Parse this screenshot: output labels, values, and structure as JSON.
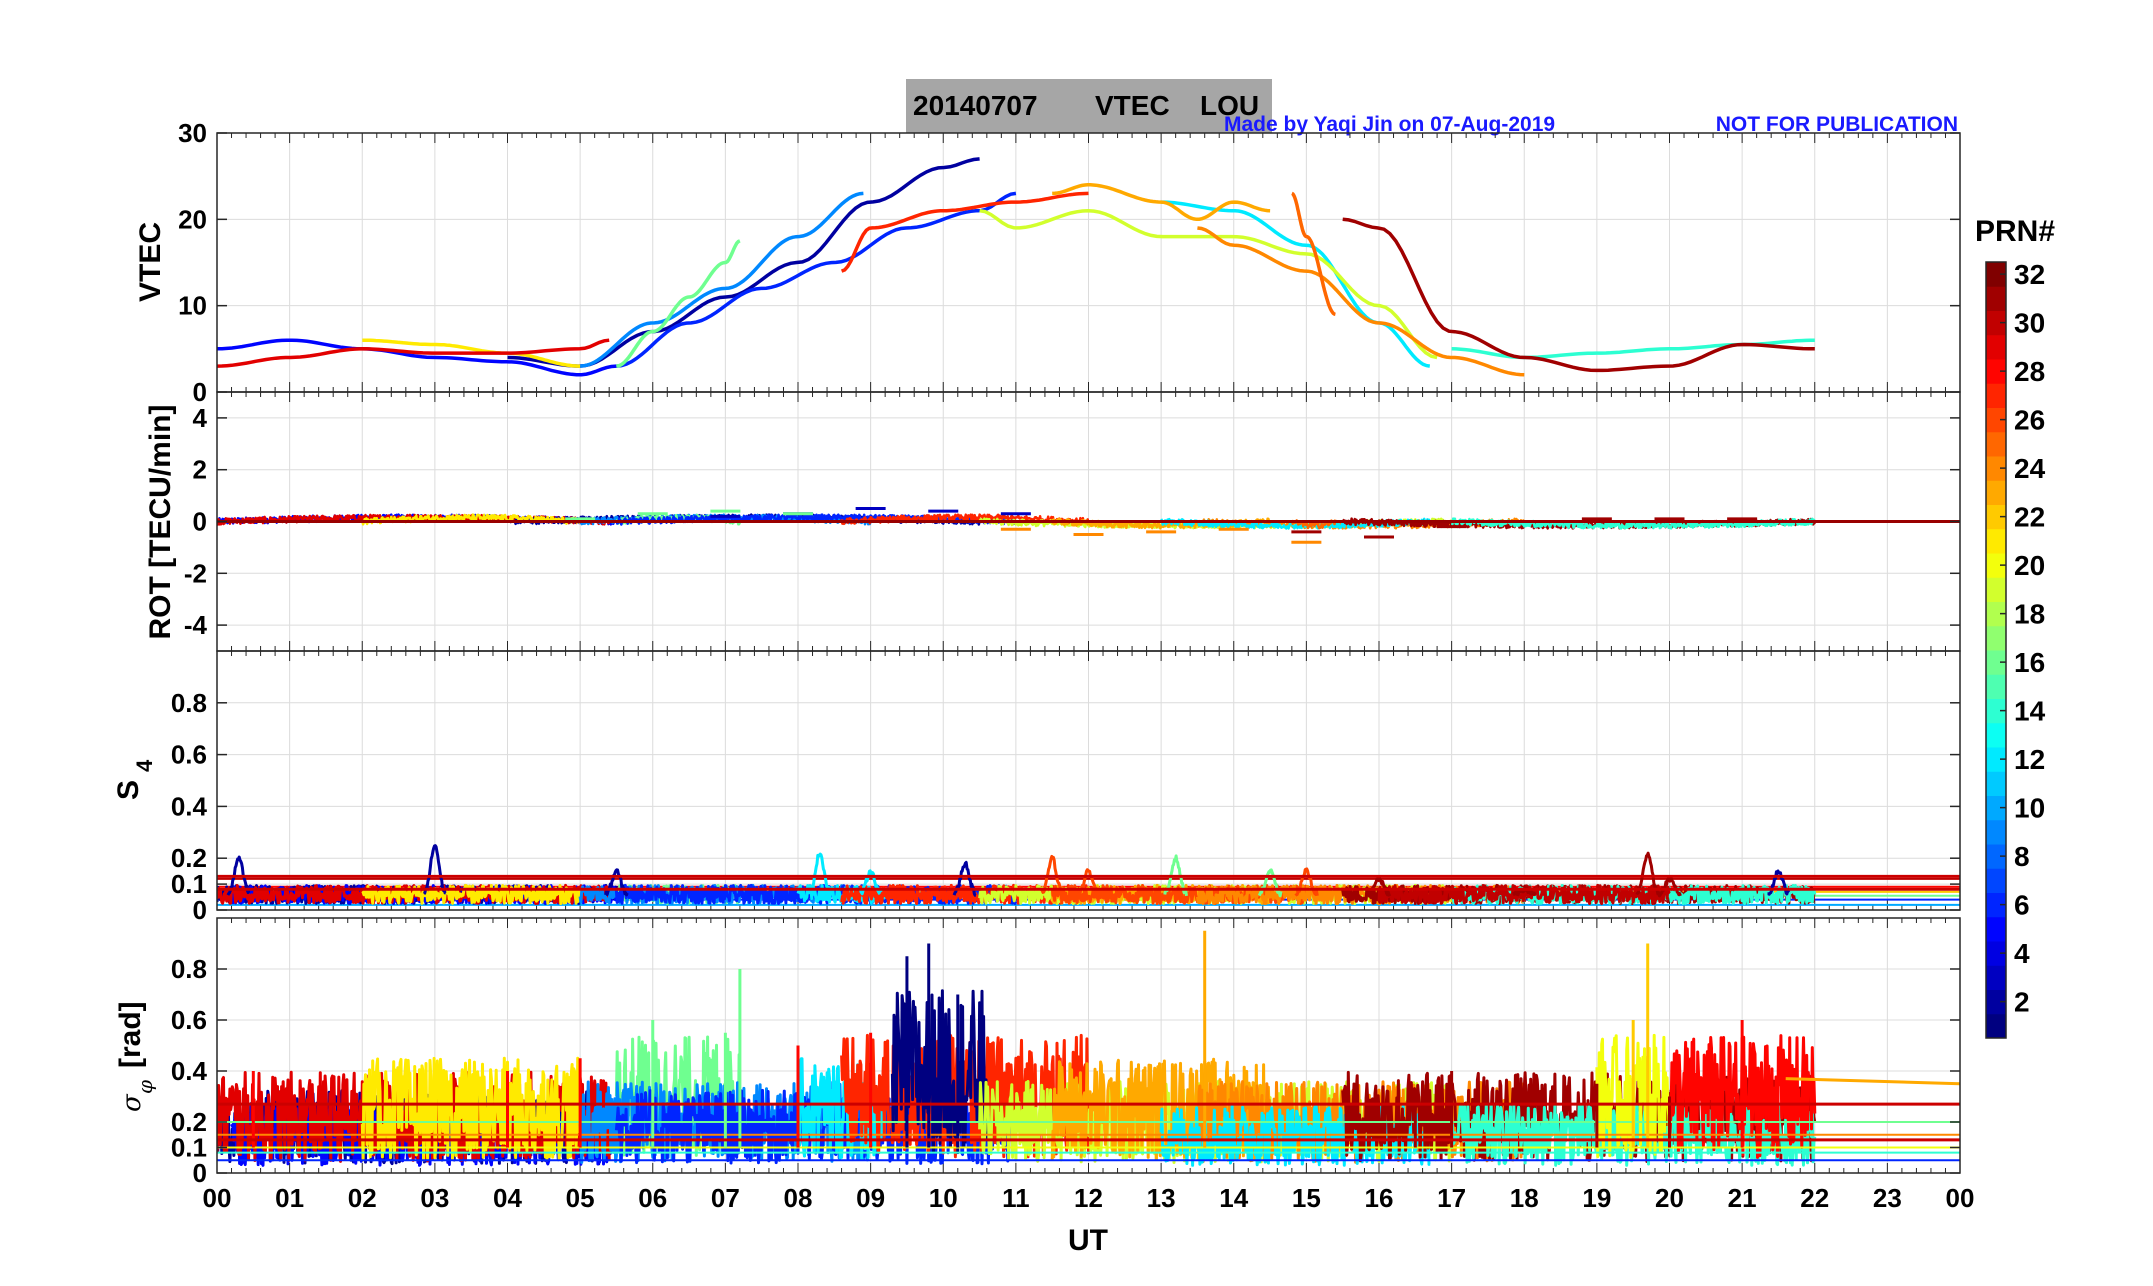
{
  "title": {
    "date": "20140707",
    "quantity": "VTEC",
    "station": "LOU"
  },
  "notes": {
    "credit": "Made by Yaqi Jin on 07-Aug-2019",
    "disclaimer": "NOT FOR PUBLICATION"
  },
  "xlabel": "UT",
  "xticks": [
    "00",
    "01",
    "02",
    "03",
    "04",
    "05",
    "06",
    "07",
    "08",
    "09",
    "10",
    "11",
    "12",
    "13",
    "14",
    "15",
    "16",
    "17",
    "18",
    "19",
    "20",
    "21",
    "22",
    "23",
    "00"
  ],
  "colorbar": {
    "label": "PRN#",
    "ticks": [
      "2",
      "4",
      "6",
      "8",
      "10",
      "12",
      "14",
      "16",
      "18",
      "20",
      "22",
      "24",
      "26",
      "28",
      "30",
      "32"
    ],
    "range": [
      1,
      32
    ]
  },
  "chart_data": [
    {
      "type": "line",
      "panel": "vtec",
      "ylabel": "VTEC",
      "ylim": [
        0,
        30
      ],
      "yticks": [
        "0",
        "10",
        "20",
        "30"
      ],
      "series": [
        {
          "name": "PRN 2",
          "prn": 2,
          "x": [
            4.0,
            5.0,
            6.0,
            7.0,
            8.0,
            9.0,
            10.0,
            10.5
          ],
          "values": [
            4.0,
            3.0,
            7.0,
            11.0,
            15.0,
            22.0,
            26.0,
            27.0
          ]
        },
        {
          "name": "PRN 5",
          "prn": 5,
          "x": [
            0.0,
            1.0,
            2.0,
            3.0,
            4.0,
            5.0,
            5.5
          ],
          "values": [
            5.0,
            6.0,
            5.0,
            4.0,
            3.5,
            2.0,
            3.0
          ]
        },
        {
          "name": "PRN 6",
          "prn": 6,
          "x": [
            5.5,
            6.5,
            7.5,
            8.5,
            9.5,
            10.5,
            11.0
          ],
          "values": [
            3.0,
            8.0,
            12.0,
            15.0,
            19.0,
            21.0,
            23.0
          ]
        },
        {
          "name": "PRN 9",
          "prn": 9,
          "x": [
            5.0,
            6.0,
            7.0,
            8.0,
            8.9
          ],
          "values": [
            3.0,
            8.0,
            12.0,
            18.0,
            23.0
          ]
        },
        {
          "name": "PRN 12",
          "prn": 12,
          "x": [
            13.0,
            14.0,
            15.0,
            16.0,
            16.7
          ],
          "values": [
            22.0,
            21.0,
            17.0,
            8.0,
            3.0
          ]
        },
        {
          "name": "PRN 14",
          "prn": 14,
          "x": [
            17.0,
            18.0,
            19.0,
            20.0,
            21.0,
            22.0
          ],
          "values": [
            5.0,
            4.0,
            4.5,
            5.0,
            5.5,
            6.0
          ]
        },
        {
          "name": "PRN 16",
          "prn": 16,
          "x": [
            5.5,
            6.0,
            6.5,
            7.0,
            7.2
          ],
          "values": [
            3.0,
            7.0,
            11.0,
            15.0,
            17.5
          ]
        },
        {
          "name": "PRN 19",
          "prn": 19,
          "x": [
            10.5,
            11.0,
            12.0,
            13.0,
            14.0,
            15.0,
            16.0,
            16.8
          ],
          "values": [
            21.0,
            19.0,
            21.0,
            18.0,
            18.0,
            16.0,
            10.0,
            4.0
          ]
        },
        {
          "name": "PRN 21",
          "prn": 21,
          "x": [
            2.0,
            3.0,
            4.0,
            5.0
          ],
          "values": [
            6.0,
            5.5,
            4.5,
            3.0
          ]
        },
        {
          "name": "PRN 23",
          "prn": 23,
          "x": [
            11.5,
            12.0,
            13.0,
            13.5,
            14.0,
            14.5
          ],
          "values": [
            23.0,
            24.0,
            22.0,
            20.0,
            22.0,
            21.0
          ]
        },
        {
          "name": "PRN 24",
          "prn": 24,
          "x": [
            13.5,
            14.0,
            15.0,
            16.0,
            17.0,
            18.0
          ],
          "values": [
            19.0,
            17.0,
            14.0,
            8.0,
            4.0,
            2.0
          ]
        },
        {
          "name": "PRN 25",
          "prn": 25,
          "x": [
            14.8,
            15.0,
            15.4
          ],
          "values": [
            23.0,
            18.0,
            9.0
          ]
        },
        {
          "name": "PRN 27",
          "prn": 27,
          "x": [
            8.6,
            9.0,
            10.0,
            11.0,
            12.0
          ],
          "values": [
            14.0,
            19.0,
            21.0,
            22.0,
            23.0
          ]
        },
        {
          "name": "PRN 29",
          "prn": 29,
          "x": [
            0.0,
            1.0,
            2.0,
            3.0,
            4.0,
            5.0,
            5.4
          ],
          "values": [
            3.0,
            4.0,
            5.0,
            4.5,
            4.5,
            5.0,
            6.0
          ]
        },
        {
          "name": "PRN 31",
          "prn": 31,
          "x": [
            15.5,
            16.0,
            17.0,
            18.0,
            19.0,
            20.0,
            21.0,
            22.0
          ],
          "values": [
            20.0,
            19.0,
            7.0,
            4.0,
            2.5,
            3.0,
            5.5,
            5.0
          ]
        }
      ]
    },
    {
      "type": "line",
      "panel": "rot",
      "ylabel": "ROT [TECU/min]",
      "ylim": [
        -5,
        5
      ],
      "yticks": [
        "-4",
        "-2",
        "0",
        "2",
        "4"
      ],
      "description_values": {
        "baseline": 0.0,
        "max_abs": 0.8
      },
      "series": [
        {
          "name": "PRN 3",
          "prn": 3,
          "x": [
            7.0,
            8.0,
            9.0,
            10.0,
            11.0
          ],
          "values": [
            0.2,
            0.3,
            0.5,
            0.4,
            0.3
          ]
        },
        {
          "name": "PRN 16",
          "prn": 16,
          "x": [
            5.0,
            6.0,
            7.0,
            8.0
          ],
          "values": [
            0.1,
            0.3,
            0.4,
            0.3
          ]
        },
        {
          "name": "PRN 24",
          "prn": 24,
          "x": [
            11.0,
            12.0,
            13.0,
            14.0,
            15.0
          ],
          "values": [
            -0.3,
            -0.5,
            -0.4,
            -0.3,
            -0.8
          ]
        },
        {
          "name": "PRN 31",
          "prn": 31,
          "x": [
            15.0,
            16.0,
            17.0,
            18.0,
            19.0,
            20.0,
            21.0
          ],
          "values": [
            -0.4,
            -0.6,
            -0.2,
            0.0,
            0.1,
            0.1,
            0.1
          ]
        }
      ]
    },
    {
      "type": "line",
      "panel": "s4",
      "ylabel": "S4",
      "ylabel_main": "S",
      "ylabel_sub": "4",
      "ylim": [
        0,
        1
      ],
      "yticks": [
        "0",
        "0.1",
        "0.2",
        "0.4",
        "0.6",
        "0.8"
      ],
      "series": [
        {
          "name": "PRN 2",
          "prn": 2,
          "x": [
            0.3,
            3.0,
            5.5,
            10.3,
            21.5
          ],
          "values": [
            0.2,
            0.25,
            0.15,
            0.18,
            0.15
          ]
        },
        {
          "name": "PRN 12",
          "prn": 12,
          "x": [
            8.3,
            9.0
          ],
          "values": [
            0.22,
            0.15
          ]
        },
        {
          "name": "PRN 16",
          "prn": 16,
          "x": [
            13.2,
            14.5
          ],
          "values": [
            0.2,
            0.15
          ]
        },
        {
          "name": "PRN 26",
          "prn": 26,
          "x": [
            11.5,
            12.0,
            15.0
          ],
          "values": [
            0.2,
            0.15,
            0.15
          ]
        },
        {
          "name": "PRN 31",
          "prn": 31,
          "x": [
            16.0,
            18.0,
            19.7,
            20.0
          ],
          "values": [
            0.12,
            0.08,
            0.22,
            0.12
          ]
        }
      ],
      "reference_lines": [
        0.13,
        0.08
      ]
    },
    {
      "type": "line",
      "panel": "sigma_phi",
      "ylabel": "σφ [rad]",
      "ylabel_main": "σ",
      "ylabel_sub": "φ",
      "ylabel_unit": "[rad]",
      "ylim": [
        0,
        1
      ],
      "yticks": [
        "0",
        "0.1",
        "0.2",
        "0.4",
        "0.6",
        "0.8"
      ],
      "series": [
        {
          "name": "PRN 1",
          "prn": 1,
          "x": [
            9.5,
            9.8,
            10.2
          ],
          "values": [
            0.85,
            0.9,
            0.7
          ]
        },
        {
          "name": "PRN 16",
          "prn": 16,
          "x": [
            6.0,
            7.0,
            7.2
          ],
          "values": [
            0.6,
            0.55,
            0.8
          ]
        },
        {
          "name": "PRN 22",
          "prn": 22,
          "x": [
            19.5,
            19.7
          ],
          "values": [
            0.6,
            0.9
          ]
        },
        {
          "name": "PRN 23",
          "prn": 23,
          "x": [
            13.6
          ],
          "values": [
            0.95
          ]
        },
        {
          "name": "PRN 23b",
          "prn": 23,
          "x": [
            21.6,
            24.0
          ],
          "values": [
            0.37,
            0.35
          ]
        },
        {
          "name": "PRN 28",
          "prn": 28,
          "x": [
            0.5,
            4.0,
            5.0,
            8.0,
            9.0,
            21.0
          ],
          "values": [
            0.4,
            0.4,
            0.45,
            0.5,
            0.55,
            0.6
          ]
        },
        {
          "name": "PRN 31",
          "prn": 31,
          "x": [
            16.5,
            17.0,
            19.0,
            20.0
          ],
          "values": [
            0.3,
            0.4,
            0.35,
            0.3
          ]
        }
      ],
      "reference_lines": [
        0.27,
        0.13
      ]
    }
  ]
}
